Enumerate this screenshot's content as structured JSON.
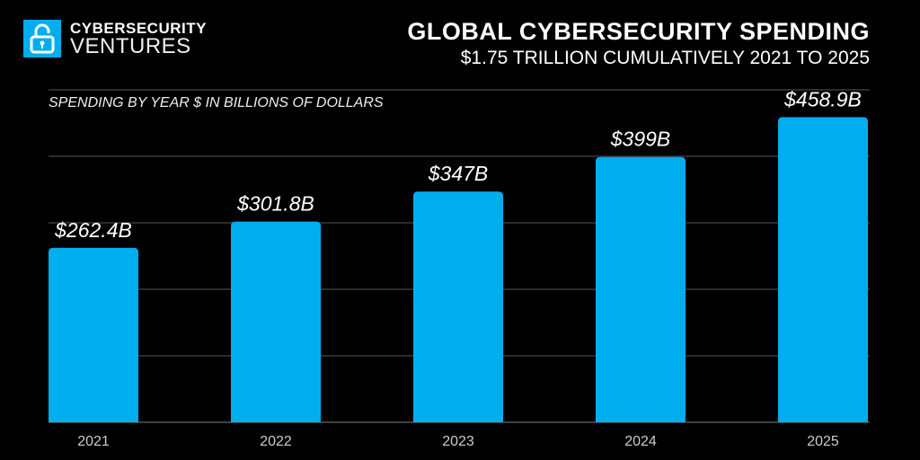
{
  "logo": {
    "line1": "CYBERSECURITY",
    "line2": "VENTURES",
    "icon": "padlock-icon",
    "color": "#00AEEF"
  },
  "chart_data": {
    "type": "bar",
    "title": "GLOBAL CYBERSECURITY SPENDING",
    "subtitle": "$1.75 TRILLION CUMULATIVELY 2021 TO 2025",
    "ylabel": "SPENDING BY YEAR $ IN BILLIONS OF DOLLARS",
    "categories": [
      "2021",
      "2022",
      "2023",
      "2024",
      "2025"
    ],
    "values": [
      262.4,
      301.8,
      347,
      399,
      458.9
    ],
    "data_labels": [
      "$262.4B",
      "$301.8B",
      "$347B",
      "$399B",
      "$458.9B"
    ],
    "ylim": [
      0,
      500
    ],
    "grid": true,
    "bar_color": "#00AEEF",
    "background": "#000000"
  }
}
